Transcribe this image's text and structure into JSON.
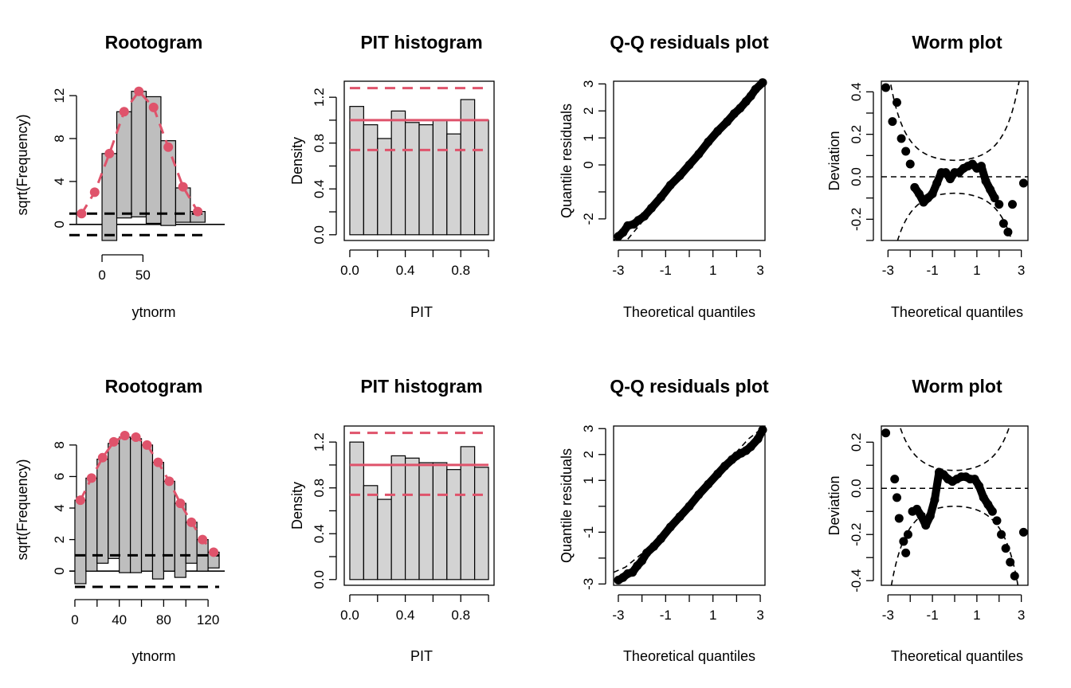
{
  "chart_data": [
    {
      "type": "bar",
      "kind": "rootogram",
      "title": "Rootogram",
      "xlabel": "ytnorm",
      "ylabel": "sqrt(Frequency)",
      "xlim": [
        -40,
        150
      ],
      "ylim": [
        -1.5,
        12.6
      ],
      "xticks": [
        "0",
        "50"
      ],
      "xtick_values": [
        0,
        50
      ],
      "yticks": [
        "0",
        "4",
        "8",
        "12"
      ],
      "ytick_values": [
        0,
        4,
        8,
        12
      ],
      "bins": [
        {
          "left": 0,
          "right": 18,
          "top": 6.6,
          "bottom": -1.5
        },
        {
          "left": 18,
          "right": 36,
          "top": 10.5,
          "bottom": 0.6
        },
        {
          "left": 36,
          "right": 54,
          "top": 12.4,
          "bottom": 0.7
        },
        {
          "left": 54,
          "right": 72,
          "top": 11.9,
          "bottom": 0.1
        },
        {
          "left": 72,
          "right": 90,
          "top": 7.8,
          "bottom": -0.1
        },
        {
          "left": 90,
          "right": 108,
          "top": 3.4,
          "bottom": 0.2
        },
        {
          "left": 108,
          "right": 126,
          "top": 1.2,
          "bottom": 0.2
        }
      ],
      "expected": {
        "x": [
          -25,
          -9,
          9,
          27,
          45,
          63,
          81,
          99,
          117
        ],
        "y": [
          1.0,
          3.0,
          6.6,
          10.5,
          12.4,
          10.9,
          7.2,
          3.5,
          1.2
        ]
      },
      "ref_lines": [
        1,
        -1
      ],
      "ref_line_x": [
        -40,
        126
      ]
    },
    {
      "type": "bar",
      "kind": "pit-histogram",
      "title": "PIT histogram",
      "xlabel": "PIT",
      "ylabel": "Density",
      "xlim": [
        -0.04,
        1.04
      ],
      "ylim": [
        -0.05,
        1.34
      ],
      "xticks": [
        "0.0",
        "0.4",
        "0.8"
      ],
      "xtick_values": [
        0,
        0.2,
        0.4,
        0.6,
        0.8,
        1.0
      ],
      "xtick_label_values": [
        0,
        0.4,
        0.8
      ],
      "yticks": [
        "0.0",
        "0.4",
        "0.8",
        "1.2"
      ],
      "ytick_values": [
        0,
        0.2,
        0.4,
        0.6,
        0.8,
        1.0,
        1.2
      ],
      "ytick_label_values": [
        0,
        0.4,
        0.8,
        1.2
      ],
      "bin_width": 0.1,
      "values": [
        1.12,
        0.96,
        0.84,
        1.08,
        0.98,
        0.96,
        1.0,
        0.88,
        1.18,
        1.0
      ],
      "ref_solid": 1.0,
      "ref_dashed": [
        1.28,
        0.74
      ]
    },
    {
      "type": "scatter",
      "kind": "qq",
      "title": "Q-Q residuals plot",
      "xlabel": "Theoretical quantiles",
      "ylabel": "Quantile residuals",
      "xlim": [
        -3.2,
        3.2
      ],
      "ylim": [
        -2.8,
        3.1
      ],
      "xticks": [
        "-3",
        "-1",
        "1",
        "3"
      ],
      "xtick_values": [
        -3,
        -2,
        -1,
        0,
        1,
        2,
        3
      ],
      "xtick_label_values": [
        -3,
        -1,
        1,
        3
      ],
      "yticks": [
        "-2",
        "0",
        "1",
        "2",
        "3"
      ],
      "ytick_values": [
        -2,
        -1,
        0,
        1,
        2,
        3
      ],
      "ytick_label_values": [
        -2,
        0,
        1,
        2,
        3
      ],
      "band_lower": {
        "x": [
          -2.6,
          -1.5,
          0,
          1.5,
          2.6,
          3.2
        ],
        "y": [
          -2.75,
          -1.6,
          -0.05,
          1.45,
          2.45,
          3.05
        ]
      },
      "band_upper": {
        "x": [
          -3.2,
          -2.6,
          -1.5,
          0,
          1.5,
          2.6,
          3.2
        ],
        "y": [
          -2.8,
          -2.35,
          -1.45,
          0.05,
          1.55,
          2.75,
          3.1
        ]
      },
      "points": {
        "x": [
          -3.0,
          -2.8,
          -2.6,
          -2.35,
          -2.15,
          -1.9,
          -1.6,
          -1.2,
          -0.8,
          -0.4,
          0.0,
          0.4,
          0.8,
          1.2,
          1.6,
          1.9,
          2.15,
          2.4,
          2.6,
          2.8,
          3.1
        ],
        "y": [
          -2.65,
          -2.5,
          -2.25,
          -2.2,
          -2.05,
          -1.9,
          -1.6,
          -1.2,
          -0.75,
          -0.4,
          0.0,
          0.4,
          0.85,
          1.25,
          1.6,
          1.9,
          2.1,
          2.35,
          2.55,
          2.8,
          3.05
        ]
      }
    },
    {
      "type": "scatter",
      "kind": "worm",
      "title": "Worm plot",
      "xlabel": "Theoretical quantiles",
      "ylabel": "Deviation",
      "xlim": [
        -3.3,
        3.3
      ],
      "ylim": [
        -0.3,
        0.45
      ],
      "xticks": [
        "-3",
        "-1",
        "1",
        "3"
      ],
      "xtick_values": [
        -3,
        -2,
        -1,
        0,
        1,
        2,
        3
      ],
      "xtick_label_values": [
        -3,
        -1,
        1,
        3
      ],
      "yticks": [
        "-0.2",
        "0.0",
        "0.2",
        "0.4"
      ],
      "ytick_values": [
        -0.3,
        -0.2,
        -0.1,
        0,
        0.1,
        0.2,
        0.3,
        0.4
      ],
      "ytick_label_values": [
        -0.2,
        0,
        0.2,
        0.4
      ],
      "points": {
        "x": [
          -3.1,
          -2.8,
          -2.6,
          -2.4,
          -2.2,
          -2.0,
          -1.8,
          -1.6,
          -1.4,
          -1.2,
          -1.0,
          -0.8,
          -0.6,
          -0.4,
          -0.2,
          0.0,
          0.2,
          0.4,
          0.6,
          0.8,
          1.0,
          1.2,
          1.4,
          1.6,
          1.8,
          2.0,
          2.2,
          2.4,
          2.6,
          3.1
        ],
        "y": [
          0.42,
          0.26,
          0.35,
          0.18,
          0.12,
          0.06,
          -0.05,
          -0.08,
          -0.12,
          -0.1,
          -0.08,
          -0.03,
          0.02,
          0.02,
          -0.01,
          0.02,
          0.02,
          0.04,
          0.05,
          0.06,
          0.04,
          0.05,
          -0.02,
          -0.06,
          -0.1,
          -0.13,
          -0.22,
          -0.26,
          -0.13,
          -0.03
        ]
      },
      "ref_line": 0
    },
    {
      "type": "bar",
      "kind": "rootogram",
      "title": "Rootogram",
      "xlabel": "ytnorm",
      "ylabel": "sqrt(Frequency)",
      "xlim": [
        -5,
        135
      ],
      "ylim": [
        -0.9,
        8.7
      ],
      "xticks": [
        "0",
        "40",
        "80",
        "120"
      ],
      "xtick_values": [
        0,
        20,
        40,
        60,
        80,
        100,
        120
      ],
      "xtick_label_values": [
        0,
        40,
        80,
        120
      ],
      "yticks": [
        "0",
        "2",
        "4",
        "6",
        "8"
      ],
      "ytick_values": [
        0,
        2,
        4,
        6,
        8
      ],
      "bins": [
        {
          "left": 0,
          "right": 10,
          "top": 4.5,
          "bottom": -0.8
        },
        {
          "left": 10,
          "right": 20,
          "top": 5.9,
          "bottom": 0.0
        },
        {
          "left": 20,
          "right": 30,
          "top": 7.1,
          "bottom": 0.5
        },
        {
          "left": 30,
          "right": 40,
          "top": 8.1,
          "bottom": 0.8
        },
        {
          "left": 40,
          "right": 50,
          "top": 8.5,
          "bottom": -0.1
        },
        {
          "left": 50,
          "right": 60,
          "top": 8.4,
          "bottom": -0.1
        },
        {
          "left": 60,
          "right": 70,
          "top": 8.0,
          "bottom": 0.0
        },
        {
          "left": 70,
          "right": 80,
          "top": 6.9,
          "bottom": -0.5
        },
        {
          "left": 80,
          "right": 90,
          "top": 5.7,
          "bottom": 0.0
        },
        {
          "left": 90,
          "right": 100,
          "top": 4.3,
          "bottom": -0.4
        },
        {
          "left": 100,
          "right": 110,
          "top": 3.1,
          "bottom": 0.5
        },
        {
          "left": 110,
          "right": 120,
          "top": 2.0,
          "bottom": 0.0
        },
        {
          "left": 120,
          "right": 130,
          "top": 1.2,
          "bottom": 0.2
        }
      ],
      "expected": {
        "x": [
          5,
          15,
          25,
          35,
          45,
          55,
          65,
          75,
          85,
          95,
          105,
          115,
          125
        ],
        "y": [
          4.5,
          5.9,
          7.2,
          8.2,
          8.6,
          8.5,
          8.0,
          6.9,
          5.7,
          4.3,
          3.1,
          2.0,
          1.2
        ]
      },
      "ref_lines": [
        1,
        -1
      ],
      "ref_line_x": [
        0,
        130
      ]
    },
    {
      "type": "bar",
      "kind": "pit-histogram",
      "title": "PIT histogram",
      "xlabel": "PIT",
      "ylabel": "Density",
      "xlim": [
        -0.04,
        1.04
      ],
      "ylim": [
        -0.05,
        1.34
      ],
      "xticks": [
        "0.0",
        "0.4",
        "0.8"
      ],
      "xtick_values": [
        0,
        0.2,
        0.4,
        0.6,
        0.8,
        1.0
      ],
      "xtick_label_values": [
        0,
        0.4,
        0.8
      ],
      "yticks": [
        "0.0",
        "0.4",
        "0.8",
        "1.2"
      ],
      "ytick_values": [
        0,
        0.2,
        0.4,
        0.6,
        0.8,
        1.0,
        1.2
      ],
      "ytick_label_values": [
        0,
        0.4,
        0.8,
        1.2
      ],
      "bin_width": 0.1,
      "values": [
        1.2,
        0.82,
        0.7,
        1.08,
        1.06,
        1.02,
        1.02,
        0.96,
        1.16,
        0.98
      ],
      "ref_solid": 1.0,
      "ref_dashed": [
        1.28,
        0.74
      ]
    },
    {
      "type": "scatter",
      "kind": "qq",
      "title": "Q-Q residuals plot",
      "xlabel": "Theoretical quantiles",
      "ylabel": "Quantile residuals",
      "xlim": [
        -3.2,
        3.2
      ],
      "ylim": [
        -3.05,
        3.1
      ],
      "xticks": [
        "-3",
        "-1",
        "1",
        "3"
      ],
      "xtick_values": [
        -3,
        -2,
        -1,
        0,
        1,
        2,
        3
      ],
      "xtick_label_values": [
        -3,
        -1,
        1,
        3
      ],
      "yticks": [
        "-3",
        "-1",
        "1",
        "2",
        "3"
      ],
      "ytick_values": [
        -3,
        -2,
        -1,
        0,
        1,
        2,
        3
      ],
      "ytick_label_values": [
        -3,
        -1,
        1,
        2,
        3
      ],
      "band_lower": {
        "x": [
          -2.6,
          -1.5,
          0,
          1.5,
          2.5,
          3.2
        ],
        "y": [
          -2.75,
          -1.6,
          -0.05,
          1.45,
          2.25,
          3.0
        ]
      },
      "band_upper": {
        "x": [
          -3.2,
          -2.7,
          -1.5,
          0,
          1.5,
          2.5,
          3.2
        ],
        "y": [
          -2.55,
          -2.35,
          -1.45,
          0.05,
          1.6,
          2.6,
          3.1
        ]
      },
      "points": {
        "x": [
          -3.0,
          -2.8,
          -2.6,
          -2.4,
          -2.2,
          -2.0,
          -1.8,
          -1.5,
          -1.2,
          -0.8,
          -0.4,
          0.0,
          0.4,
          0.8,
          1.2,
          1.5,
          1.8,
          2.0,
          2.2,
          2.4,
          2.6,
          2.9,
          3.1
        ],
        "y": [
          -2.85,
          -2.75,
          -2.6,
          -2.55,
          -2.3,
          -2.1,
          -1.8,
          -1.55,
          -1.25,
          -0.8,
          -0.4,
          0.0,
          0.45,
          0.85,
          1.25,
          1.55,
          1.8,
          1.95,
          2.05,
          2.15,
          2.3,
          2.6,
          2.95
        ]
      }
    },
    {
      "type": "scatter",
      "kind": "worm",
      "title": "Worm plot",
      "xlabel": "Theoretical quantiles",
      "ylabel": "Deviation",
      "xlim": [
        -3.3,
        3.3
      ],
      "ylim": [
        -0.42,
        0.27
      ],
      "xticks": [
        "-3",
        "-1",
        "1",
        "3"
      ],
      "xtick_values": [
        -3,
        -2,
        -1,
        0,
        1,
        2,
        3
      ],
      "xtick_label_values": [
        -3,
        -1,
        1,
        3
      ],
      "yticks": [
        "-0.4",
        "-0.2",
        "0.0",
        "0.2"
      ],
      "ytick_values": [
        -0.4,
        -0.3,
        -0.2,
        -0.1,
        0,
        0.1,
        0.2
      ],
      "ytick_label_values": [
        -0.4,
        -0.2,
        0,
        0.2
      ],
      "points": {
        "x": [
          -3.1,
          -2.7,
          -2.6,
          -2.5,
          -2.3,
          -2.2,
          -2.1,
          -1.9,
          -1.7,
          -1.5,
          -1.3,
          -1.1,
          -0.9,
          -0.7,
          -0.5,
          -0.3,
          -0.1,
          0.1,
          0.3,
          0.5,
          0.7,
          0.9,
          1.1,
          1.3,
          1.5,
          1.7,
          1.9,
          2.1,
          2.3,
          2.5,
          2.7,
          3.1
        ],
        "y": [
          0.24,
          0.04,
          -0.04,
          -0.13,
          -0.23,
          -0.28,
          -0.2,
          -0.1,
          -0.09,
          -0.12,
          -0.16,
          -0.12,
          -0.05,
          0.07,
          0.06,
          0.04,
          0.03,
          0.04,
          0.05,
          0.05,
          0.04,
          0.04,
          0.01,
          -0.04,
          -0.07,
          -0.1,
          -0.14,
          -0.2,
          -0.26,
          -0.32,
          -0.38,
          -0.19
        ]
      },
      "ref_line": 0
    }
  ],
  "style": {
    "bar_fill": "#bebebe",
    "pit_fill": "#d3d3d3",
    "accent": "#df536b",
    "ink": "#000000"
  }
}
